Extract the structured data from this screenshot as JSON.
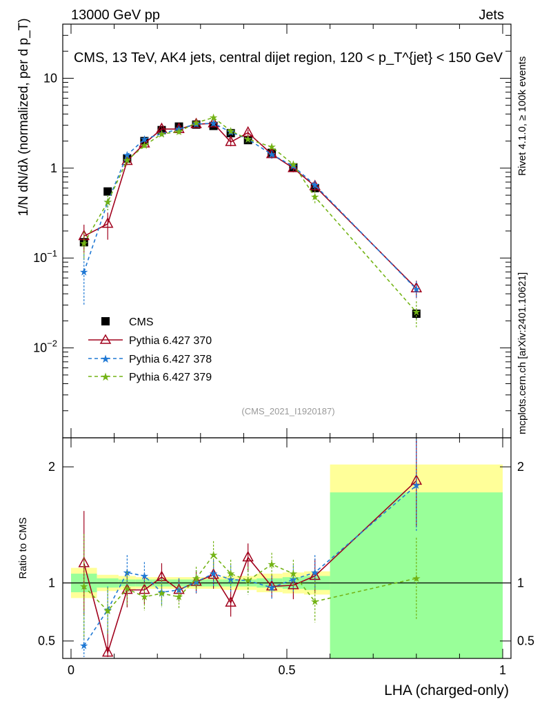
{
  "header": {
    "energy": "13000 GeV pp",
    "category": "Jets"
  },
  "side_labels": {
    "rivet": "Rivet 4.1.0, ≥ 100k events",
    "mcplots": "mcplots.cern.ch [arXiv:2401.10621]"
  },
  "chart_data": {
    "type": "line",
    "title": "CMS, 13 TeV, AK4 jets, central dijet region, 120 < p_T^{jet} < 150 GeV",
    "analysis_id": "(CMS_2021_I1920187)",
    "xlabel": "LHA (charged-only)",
    "ylabel": "1/N dN/dλ (normalized, per d p_T)",
    "ratio_ylabel": "Ratio to CMS",
    "xlim": [
      0,
      1
    ],
    "ylim": [
      0.001,
      40
    ],
    "yscale": "log",
    "ratio_ylim": [
      0.35,
      2.25
    ],
    "x_ticks": [
      "0",
      "0.5",
      "1"
    ],
    "y_ticks": [
      "10^-2",
      "10^-1",
      "1",
      "10"
    ],
    "ratio_ticks": [
      "0.5",
      "1",
      "2"
    ],
    "legend": [
      "CMS",
      "Pythia 6.427 370",
      "Pythia 6.427 378",
      "Pythia 6.427 379"
    ],
    "legend_position": "bottom-left",
    "x": [
      0.03,
      0.085,
      0.13,
      0.17,
      0.21,
      0.25,
      0.29,
      0.33,
      0.37,
      0.41,
      0.465,
      0.515,
      0.565,
      0.8
    ],
    "bin_edges": [
      0,
      0.06,
      0.11,
      0.15,
      0.19,
      0.23,
      0.27,
      0.31,
      0.35,
      0.39,
      0.43,
      0.49,
      0.54,
      0.6,
      1.0
    ],
    "data": {
      "name": "CMS",
      "values": [
        0.15,
        0.55,
        1.28,
        2.0,
        2.65,
        2.9,
        3.05,
        2.95,
        2.45,
        2.05,
        1.48,
        1.02,
        0.6,
        0.024
      ],
      "errors": [
        0.02,
        0.04,
        0.06,
        0.08,
        0.1,
        0.1,
        0.1,
        0.1,
        0.1,
        0.08,
        0.06,
        0.05,
        0.04,
        0.003
      ]
    },
    "series": [
      {
        "name": "Pythia 6.427 370",
        "color": "#a0001c",
        "values": [
          0.175,
          0.24,
          1.2,
          1.88,
          2.72,
          2.72,
          3.08,
          3.15,
          1.95,
          2.48,
          1.43,
          1.0,
          0.63,
          0.046
        ],
        "errors": [
          0.06,
          0.08,
          0.12,
          0.15,
          0.2,
          0.2,
          0.2,
          0.2,
          0.2,
          0.2,
          0.15,
          0.1,
          0.08,
          0.01
        ],
        "ratio": [
          1.17,
          0.4,
          0.94,
          0.94,
          1.05,
          0.94,
          1.01,
          1.07,
          0.83,
          1.22,
          0.97,
          0.98,
          1.06,
          1.88
        ],
        "ratio_errors": [
          0.45,
          0.2,
          0.15,
          0.12,
          0.12,
          0.1,
          0.1,
          0.12,
          0.12,
          0.12,
          0.1,
          0.12,
          0.15,
          0.4
        ]
      },
      {
        "name": "Pythia 6.427 378",
        "color": "#1f78d4",
        "values": [
          0.07,
          0.42,
          1.4,
          2.1,
          2.42,
          2.72,
          3.1,
          3.15,
          2.52,
          2.1,
          1.42,
          1.05,
          0.65,
          0.045
        ],
        "errors": [
          0.04,
          0.08,
          0.12,
          0.15,
          0.2,
          0.2,
          0.2,
          0.2,
          0.2,
          0.2,
          0.15,
          0.1,
          0.08,
          0.01
        ],
        "ratio": [
          0.46,
          0.77,
          1.09,
          1.06,
          0.92,
          0.94,
          1.01,
          1.08,
          1.03,
          1.02,
          0.96,
          1.03,
          1.09,
          1.84
        ],
        "ratio_errors": [
          0.3,
          0.2,
          0.15,
          0.12,
          0.12,
          0.1,
          0.1,
          0.12,
          0.12,
          0.12,
          0.1,
          0.12,
          0.15,
          0.4
        ]
      },
      {
        "name": "Pythia 6.427 379",
        "color": "#73b315",
        "values": [
          0.145,
          0.42,
          1.22,
          1.78,
          2.4,
          2.55,
          3.2,
          3.65,
          2.6,
          2.1,
          1.72,
          1.1,
          0.48,
          0.025
        ],
        "errors": [
          0.05,
          0.08,
          0.12,
          0.15,
          0.2,
          0.2,
          0.2,
          0.2,
          0.2,
          0.2,
          0.15,
          0.1,
          0.08,
          0.008
        ],
        "ratio": [
          0.97,
          0.76,
          0.95,
          0.88,
          0.91,
          0.88,
          1.04,
          1.24,
          1.08,
          1.02,
          1.16,
          1.08,
          0.84,
          1.04
        ],
        "ratio_errors": [
          0.45,
          0.2,
          0.15,
          0.12,
          0.12,
          0.1,
          0.1,
          0.12,
          0.12,
          0.12,
          0.1,
          0.12,
          0.18,
          0.35
        ]
      }
    ],
    "ratio_bands": {
      "stat_color": "#99ff99",
      "total_color": "#ffff99",
      "stat": [
        0.08,
        0.04,
        0.03,
        0.03,
        0.03,
        0.03,
        0.03,
        0.03,
        0.03,
        0.03,
        0.04,
        0.05,
        0.06,
        0.78
      ],
      "total": [
        0.13,
        0.07,
        0.06,
        0.05,
        0.05,
        0.05,
        0.05,
        0.05,
        0.06,
        0.06,
        0.08,
        0.09,
        0.1,
        1.02
      ]
    }
  }
}
